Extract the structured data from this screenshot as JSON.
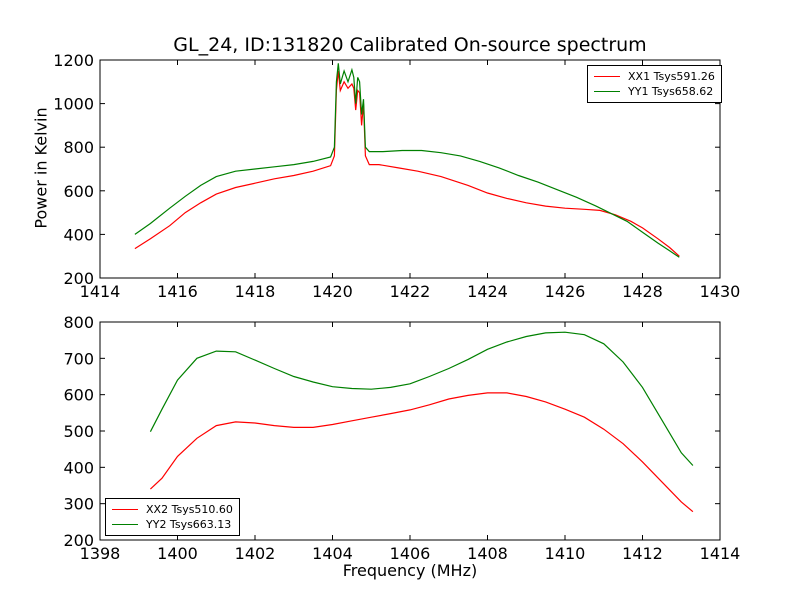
{
  "chart_data": [
    {
      "type": "line",
      "title": "GL_24, ID:131820 Calibrated On-source spectrum",
      "xlabel": "",
      "ylabel": "Power in Kelvin",
      "xlim": [
        1414,
        1430
      ],
      "ylim": [
        200,
        1200
      ],
      "xticks": [
        "1414",
        "1416",
        "1418",
        "1420",
        "1422",
        "1424",
        "1426",
        "1428",
        "1430"
      ],
      "yticks": [
        "200",
        "400",
        "600",
        "800",
        "1000",
        "1200"
      ],
      "legend_position": "upper right",
      "series": [
        {
          "name": "XX1 Tsys591.26",
          "color": "#ff0000",
          "points": [
            [
              1414.9,
              335
            ],
            [
              1415.3,
              380
            ],
            [
              1415.8,
              440
            ],
            [
              1416.2,
              500
            ],
            [
              1416.6,
              545
            ],
            [
              1417.0,
              585
            ],
            [
              1417.5,
              615
            ],
            [
              1418.0,
              635
            ],
            [
              1418.5,
              655
            ],
            [
              1419.0,
              670
            ],
            [
              1419.5,
              690
            ],
            [
              1419.95,
              715
            ],
            [
              1420.05,
              760
            ],
            [
              1420.1,
              1060
            ],
            [
              1420.15,
              1150
            ],
            [
              1420.2,
              1060
            ],
            [
              1420.3,
              1100
            ],
            [
              1420.4,
              1070
            ],
            [
              1420.5,
              1090
            ],
            [
              1420.55,
              1070
            ],
            [
              1420.6,
              970
            ],
            [
              1420.65,
              1060
            ],
            [
              1420.7,
              1050
            ],
            [
              1420.75,
              900
            ],
            [
              1420.8,
              1000
            ],
            [
              1420.85,
              760
            ],
            [
              1420.95,
              720
            ],
            [
              1421.2,
              720
            ],
            [
              1421.7,
              705
            ],
            [
              1422.2,
              690
            ],
            [
              1422.8,
              665
            ],
            [
              1423.5,
              625
            ],
            [
              1424.0,
              590
            ],
            [
              1424.5,
              565
            ],
            [
              1425.0,
              545
            ],
            [
              1425.5,
              530
            ],
            [
              1426.0,
              520
            ],
            [
              1426.5,
              515
            ],
            [
              1426.9,
              510
            ],
            [
              1427.3,
              490
            ],
            [
              1427.7,
              460
            ],
            [
              1428.0,
              430
            ],
            [
              1428.4,
              380
            ],
            [
              1428.7,
              340
            ],
            [
              1428.95,
              300
            ]
          ]
        },
        {
          "name": "YY1 Tsys658.62",
          "color": "#008000",
          "points": [
            [
              1414.9,
              400
            ],
            [
              1415.3,
              450
            ],
            [
              1415.8,
              520
            ],
            [
              1416.2,
              575
            ],
            [
              1416.6,
              625
            ],
            [
              1417.0,
              665
            ],
            [
              1417.5,
              690
            ],
            [
              1418.0,
              700
            ],
            [
              1418.5,
              710
            ],
            [
              1419.0,
              720
            ],
            [
              1419.5,
              735
            ],
            [
              1419.95,
              755
            ],
            [
              1420.05,
              800
            ],
            [
              1420.1,
              1100
            ],
            [
              1420.15,
              1185
            ],
            [
              1420.2,
              1090
            ],
            [
              1420.3,
              1150
            ],
            [
              1420.4,
              1100
            ],
            [
              1420.5,
              1155
            ],
            [
              1420.55,
              1120
            ],
            [
              1420.6,
              1000
            ],
            [
              1420.65,
              1120
            ],
            [
              1420.7,
              1100
            ],
            [
              1420.75,
              950
            ],
            [
              1420.8,
              1020
            ],
            [
              1420.85,
              800
            ],
            [
              1420.95,
              780
            ],
            [
              1421.3,
              780
            ],
            [
              1421.8,
              785
            ],
            [
              1422.3,
              785
            ],
            [
              1422.8,
              775
            ],
            [
              1423.3,
              760
            ],
            [
              1423.8,
              735
            ],
            [
              1424.3,
              705
            ],
            [
              1424.8,
              670
            ],
            [
              1425.3,
              640
            ],
            [
              1425.8,
              605
            ],
            [
              1426.3,
              570
            ],
            [
              1426.8,
              530
            ],
            [
              1427.2,
              495
            ],
            [
              1427.6,
              460
            ],
            [
              1428.0,
              410
            ],
            [
              1428.4,
              360
            ],
            [
              1428.7,
              325
            ],
            [
              1428.95,
              295
            ]
          ]
        }
      ]
    },
    {
      "type": "line",
      "title": "",
      "xlabel": "Frequency (MHz)",
      "ylabel": "",
      "xlim": [
        1398,
        1414
      ],
      "ylim": [
        200,
        800
      ],
      "xticks": [
        "1398",
        "1400",
        "1402",
        "1404",
        "1406",
        "1408",
        "1410",
        "1412",
        "1414"
      ],
      "yticks": [
        "200",
        "300",
        "400",
        "500",
        "600",
        "700",
        "800"
      ],
      "legend_position": "lower left",
      "series": [
        {
          "name": "XX2 Tsys510.60",
          "color": "#ff0000",
          "points": [
            [
              1399.3,
              340
            ],
            [
              1399.6,
              370
            ],
            [
              1400.0,
              430
            ],
            [
              1400.5,
              480
            ],
            [
              1401.0,
              515
            ],
            [
              1401.5,
              525
            ],
            [
              1402.0,
              522
            ],
            [
              1402.5,
              515
            ],
            [
              1403.0,
              510
            ],
            [
              1403.5,
              510
            ],
            [
              1404.0,
              518
            ],
            [
              1404.5,
              528
            ],
            [
              1405.0,
              538
            ],
            [
              1405.5,
              548
            ],
            [
              1406.0,
              558
            ],
            [
              1406.5,
              572
            ],
            [
              1407.0,
              588
            ],
            [
              1407.5,
              598
            ],
            [
              1408.0,
              605
            ],
            [
              1408.5,
              605
            ],
            [
              1409.0,
              595
            ],
            [
              1409.5,
              580
            ],
            [
              1410.0,
              560
            ],
            [
              1410.5,
              538
            ],
            [
              1411.0,
              505
            ],
            [
              1411.5,
              465
            ],
            [
              1412.0,
              415
            ],
            [
              1412.5,
              360
            ],
            [
              1413.0,
              305
            ],
            [
              1413.3,
              278
            ]
          ]
        },
        {
          "name": "YY2 Tsys663.13",
          "color": "#008000",
          "points": [
            [
              1399.3,
              498
            ],
            [
              1399.6,
              560
            ],
            [
              1400.0,
              640
            ],
            [
              1400.5,
              700
            ],
            [
              1401.0,
              720
            ],
            [
              1401.5,
              718
            ],
            [
              1402.0,
              695
            ],
            [
              1402.5,
              672
            ],
            [
              1403.0,
              650
            ],
            [
              1403.5,
              635
            ],
            [
              1404.0,
              622
            ],
            [
              1404.5,
              617
            ],
            [
              1405.0,
              615
            ],
            [
              1405.5,
              620
            ],
            [
              1406.0,
              630
            ],
            [
              1406.5,
              650
            ],
            [
              1407.0,
              672
            ],
            [
              1407.5,
              697
            ],
            [
              1408.0,
              725
            ],
            [
              1408.5,
              745
            ],
            [
              1409.0,
              760
            ],
            [
              1409.5,
              770
            ],
            [
              1410.0,
              772
            ],
            [
              1410.5,
              765
            ],
            [
              1411.0,
              740
            ],
            [
              1411.5,
              690
            ],
            [
              1412.0,
              620
            ],
            [
              1412.5,
              530
            ],
            [
              1413.0,
              440
            ],
            [
              1413.3,
              405
            ]
          ]
        }
      ]
    }
  ]
}
